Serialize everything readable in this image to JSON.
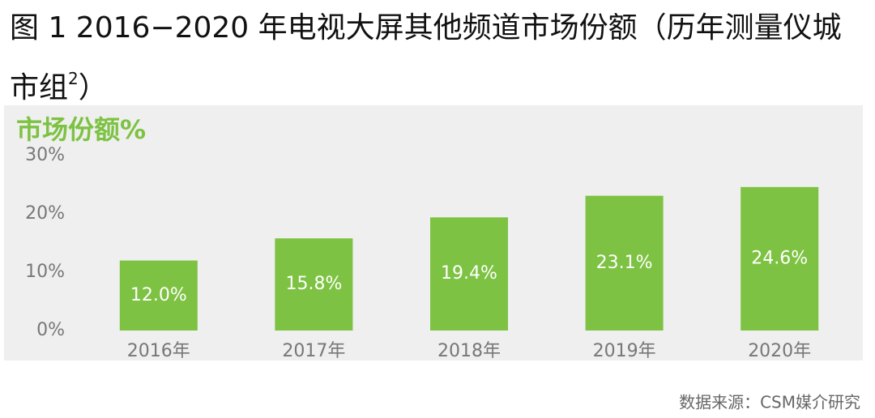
{
  "chart_data": {
    "type": "bar",
    "title": "图 1 2016−2020 年电视大屏其他频道市场份额（历年测量仪城市组",
    "title_superscript": "2",
    "title_end": "）",
    "y_axis_label": "市场份额%",
    "categories": [
      "2016年",
      "2017年",
      "2018年",
      "2019年",
      "2020年"
    ],
    "values": [
      12.0,
      15.8,
      19.4,
      23.1,
      24.6
    ],
    "value_labels": [
      "12.0%",
      "15.8%",
      "19.4%",
      "23.1%",
      "24.6%"
    ],
    "color": "#7dc242",
    "ylim": [
      0,
      30
    ],
    "yticks": [
      {
        "value": 0,
        "label": "0%"
      },
      {
        "value": 10,
        "label": "10%"
      },
      {
        "value": 20,
        "label": "20%"
      },
      {
        "value": 30,
        "label": "30%"
      }
    ],
    "grid": false,
    "source": "数据来源：CSM媒介研究"
  }
}
